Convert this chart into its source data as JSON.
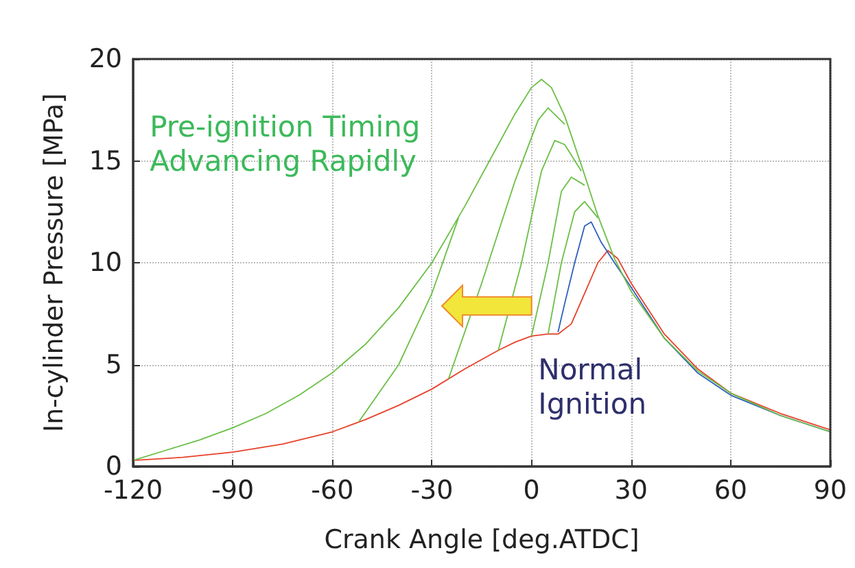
{
  "chart_data": {
    "type": "line",
    "xlabel": "Crank Angle [deg.ATDC]",
    "ylabel": "In-cylinder Pressure [MPa]",
    "xlim": [
      -120,
      90
    ],
    "xticks": [
      -120,
      -90,
      -60,
      -30,
      0,
      30,
      60,
      90
    ],
    "ylim": [
      0,
      20
    ],
    "yticks": [
      0,
      5,
      10,
      15,
      20
    ],
    "grid": true,
    "marker": "none",
    "annotations": [
      "Pre-ignition Timing\nAdvancing Rapidly",
      "Normal\nIgnition"
    ],
    "series": [
      {
        "color": "#e8412b",
        "x": [
          -120,
          -105,
          -90,
          -75,
          -60,
          -50,
          -40,
          -30,
          -20,
          -10,
          -5,
          0,
          5,
          8,
          12,
          16,
          20,
          23,
          26,
          30,
          40,
          50,
          60,
          75,
          90
        ],
        "values": [
          0.3,
          0.45,
          0.7,
          1.1,
          1.7,
          2.3,
          3.0,
          3.8,
          4.8,
          5.7,
          6.1,
          6.4,
          6.5,
          6.5,
          7.0,
          8.5,
          10.0,
          10.6,
          10.2,
          9.0,
          6.5,
          4.8,
          3.6,
          2.6,
          1.8
        ]
      },
      {
        "color": "#2e5fbd",
        "x": [
          8,
          10,
          13,
          16,
          18,
          21,
          25,
          30,
          40,
          50,
          60,
          75,
          90
        ],
        "values": [
          6.6,
          8.0,
          10.0,
          11.8,
          12.0,
          11.0,
          10.0,
          8.8,
          6.3,
          4.6,
          3.5,
          2.5,
          1.7
        ]
      },
      {
        "color": "#6abf45",
        "x": [
          -120,
          -110,
          -100,
          -90,
          -80,
          -70,
          -60,
          -50,
          -40,
          -30,
          -20,
          -10,
          -5,
          0,
          3,
          6,
          10,
          15,
          20,
          25,
          30,
          40,
          50,
          60,
          75,
          90
        ],
        "values": [
          0.3,
          0.8,
          1.3,
          1.9,
          2.6,
          3.5,
          4.6,
          6.0,
          7.8,
          10.0,
          12.8,
          15.8,
          17.3,
          18.6,
          19.0,
          18.6,
          17.2,
          14.8,
          12.3,
          10.2,
          8.6,
          6.3,
          4.7,
          3.6,
          2.5,
          1.7
        ]
      },
      {
        "color": "#6abf45",
        "x": [
          -52,
          -40,
          -30,
          -22
        ],
        "values": [
          2.2,
          5.0,
          8.5,
          12.2
        ]
      },
      {
        "color": "#6abf45",
        "x": [
          -25,
          -15,
          -5,
          2,
          5,
          10
        ],
        "values": [
          4.3,
          9.0,
          14.0,
          17.0,
          17.6,
          16.8
        ]
      },
      {
        "color": "#6abf45",
        "x": [
          -10,
          -3,
          3,
          7,
          10,
          15
        ],
        "values": [
          5.7,
          10.0,
          14.5,
          16.0,
          15.8,
          14.5
        ]
      },
      {
        "color": "#6abf45",
        "x": [
          0,
          5,
          9,
          12,
          16
        ],
        "values": [
          6.4,
          10.0,
          13.5,
          14.2,
          13.8
        ]
      },
      {
        "color": "#6abf45",
        "x": [
          5,
          9,
          13,
          16,
          20
        ],
        "values": [
          6.5,
          10.0,
          12.5,
          13.0,
          12.2
        ]
      }
    ]
  }
}
